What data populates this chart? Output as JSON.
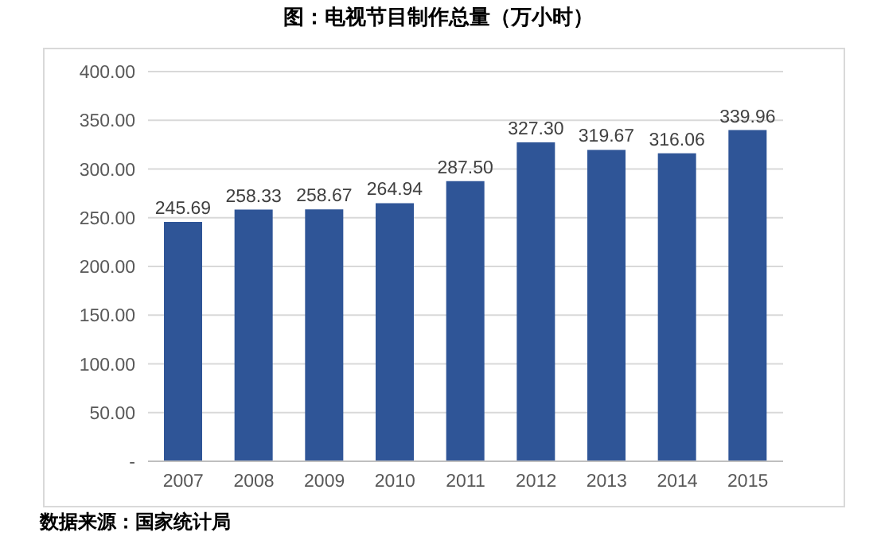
{
  "chart_data": {
    "type": "bar",
    "title": "图：电视节目制作总量（万小时）",
    "categories": [
      "2007",
      "2008",
      "2009",
      "2010",
      "2011",
      "2012",
      "2013",
      "2014",
      "2015"
    ],
    "values": [
      245.69,
      258.33,
      258.67,
      264.94,
      287.5,
      327.3,
      319.67,
      316.06,
      339.96
    ],
    "value_labels": [
      "245.69",
      "258.33",
      "258.67",
      "264.94",
      "287.50",
      "327.30",
      "319.67",
      "316.06",
      "339.96"
    ],
    "color": "#2f5597",
    "ylim": [
      0,
      400
    ],
    "yticks": [
      {
        "value": 0,
        "label": "-"
      },
      {
        "value": 50,
        "label": "50.00"
      },
      {
        "value": 100,
        "label": "100.00"
      },
      {
        "value": 150,
        "label": "150.00"
      },
      {
        "value": 200,
        "label": "200.00"
      },
      {
        "value": 250,
        "label": "250.00"
      },
      {
        "value": 300,
        "label": "300.00"
      },
      {
        "value": 350,
        "label": "350.00"
      },
      {
        "value": 400,
        "label": "400.00"
      }
    ],
    "grid": "y",
    "legend": false,
    "annotations": [
      "数据来源：国家统计局"
    ]
  }
}
